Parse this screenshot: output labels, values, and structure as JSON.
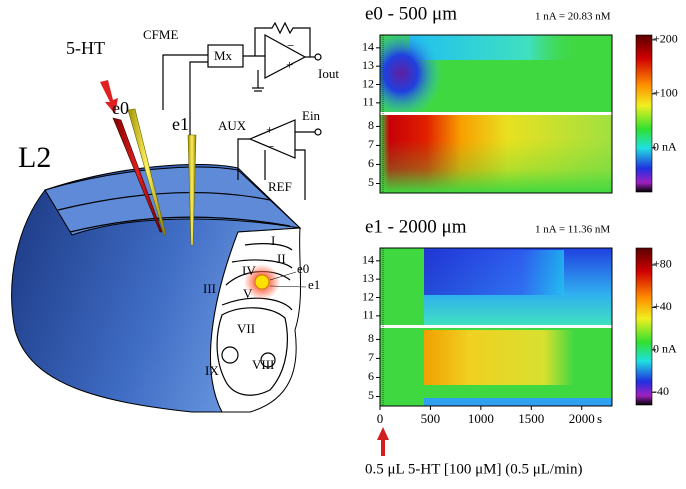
{
  "diagram": {
    "label": "L2",
    "pipette": "5-HT",
    "amplifier": "CFME",
    "mux": "Mx",
    "output": "Iout",
    "electrodes": [
      "e0",
      "e1"
    ],
    "aux": "AUX",
    "aux_input": "Ein",
    "reference": "REF",
    "layers": [
      "I",
      "II",
      "III",
      "IV",
      "V",
      "VII",
      "VIII",
      "IX"
    ],
    "site_labels": [
      "e0",
      "e1"
    ]
  },
  "panels": [
    {
      "title": "e0 - 500 μm",
      "calibration": "1 nA = 20.83 nM",
      "yticks_upper": [
        11,
        12,
        13,
        14
      ],
      "ylim_upper": [
        10.5,
        14.7
      ],
      "yticks_lower": [
        5,
        6,
        7,
        8
      ],
      "ylim_lower": [
        4.5,
        8.6
      ],
      "colorbar_ticks": [
        {
          "value": 200,
          "label": "+200"
        },
        {
          "value": 100,
          "label": "+100"
        },
        {
          "value": 0,
          "label": "0 nA"
        }
      ],
      "clim": [
        -82,
        209
      ]
    },
    {
      "title": "e1 - 2000 μm",
      "calibration": "1 nA = 11.36 nM",
      "yticks_upper": [
        11,
        12,
        13,
        14
      ],
      "ylim_upper": [
        10.5,
        14.7
      ],
      "yticks_lower": [
        5,
        6,
        7,
        8
      ],
      "ylim_lower": [
        4.5,
        8.6
      ],
      "colorbar_ticks": [
        {
          "value": 80,
          "label": "+80"
        },
        {
          "value": 40,
          "label": "+40"
        },
        {
          "value": 0,
          "label": "0 nA"
        },
        {
          "value": -40,
          "label": "-40"
        }
      ],
      "clim": [
        -52,
        96
      ]
    }
  ],
  "xticks": [
    0,
    500,
    1000,
    1500,
    2000
  ],
  "xunit": "s",
  "xlim": [
    0,
    2300
  ],
  "stimulus": "0.5 μL  5-HT [100 μM] (0.5 μL/min)"
}
